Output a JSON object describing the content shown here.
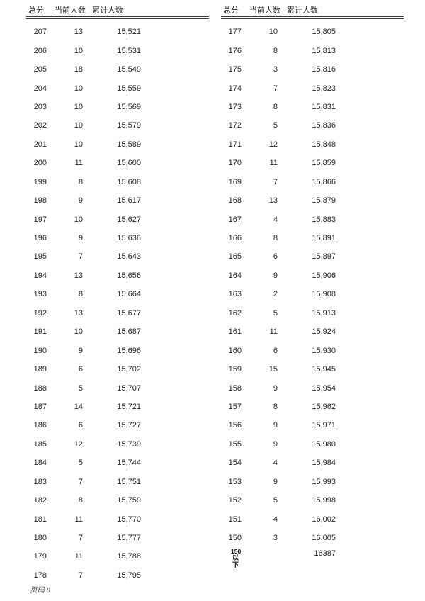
{
  "page": {
    "background": "#ffffff",
    "text_color": "#222222",
    "footer_label": "页码 8"
  },
  "tables": [
    {
      "side": "left",
      "headers": {
        "score": "总分",
        "current": "当前人数",
        "cumulative": "累计人数"
      },
      "rows": [
        {
          "score": "207",
          "current": "13",
          "cumulative": "15,521"
        },
        {
          "score": "206",
          "current": "10",
          "cumulative": "15,531"
        },
        {
          "score": "205",
          "current": "18",
          "cumulative": "15,549"
        },
        {
          "score": "204",
          "current": "10",
          "cumulative": "15,559"
        },
        {
          "score": "203",
          "current": "10",
          "cumulative": "15,569"
        },
        {
          "score": "202",
          "current": "10",
          "cumulative": "15,579"
        },
        {
          "score": "201",
          "current": "10",
          "cumulative": "15,589"
        },
        {
          "score": "200",
          "current": "11",
          "cumulative": "15,600"
        },
        {
          "score": "199",
          "current": "8",
          "cumulative": "15,608"
        },
        {
          "score": "198",
          "current": "9",
          "cumulative": "15,617"
        },
        {
          "score": "197",
          "current": "10",
          "cumulative": "15,627"
        },
        {
          "score": "196",
          "current": "9",
          "cumulative": "15,636"
        },
        {
          "score": "195",
          "current": "7",
          "cumulative": "15,643"
        },
        {
          "score": "194",
          "current": "13",
          "cumulative": "15,656"
        },
        {
          "score": "193",
          "current": "8",
          "cumulative": "15,664"
        },
        {
          "score": "192",
          "current": "13",
          "cumulative": "15,677"
        },
        {
          "score": "191",
          "current": "10",
          "cumulative": "15,687"
        },
        {
          "score": "190",
          "current": "9",
          "cumulative": "15,696"
        },
        {
          "score": "189",
          "current": "6",
          "cumulative": "15,702"
        },
        {
          "score": "188",
          "current": "5",
          "cumulative": "15,707"
        },
        {
          "score": "187",
          "current": "14",
          "cumulative": "15,721"
        },
        {
          "score": "186",
          "current": "6",
          "cumulative": "15,727"
        },
        {
          "score": "185",
          "current": "12",
          "cumulative": "15,739"
        },
        {
          "score": "184",
          "current": "5",
          "cumulative": "15,744"
        },
        {
          "score": "183",
          "current": "7",
          "cumulative": "15,751"
        },
        {
          "score": "182",
          "current": "8",
          "cumulative": "15,759"
        },
        {
          "score": "181",
          "current": "11",
          "cumulative": "15,770"
        },
        {
          "score": "180",
          "current": "7",
          "cumulative": "15,777"
        },
        {
          "score": "179",
          "current": "11",
          "cumulative": "15,788"
        },
        {
          "score": "178",
          "current": "7",
          "cumulative": "15,795"
        }
      ]
    },
    {
      "side": "right",
      "headers": {
        "score": "总分",
        "current": "当前人数",
        "cumulative": "累计人数"
      },
      "rows": [
        {
          "score": "177",
          "current": "10",
          "cumulative": "15,805"
        },
        {
          "score": "176",
          "current": "8",
          "cumulative": "15,813"
        },
        {
          "score": "175",
          "current": "3",
          "cumulative": "15,816"
        },
        {
          "score": "174",
          "current": "7",
          "cumulative": "15,823"
        },
        {
          "score": "173",
          "current": "8",
          "cumulative": "15,831"
        },
        {
          "score": "172",
          "current": "5",
          "cumulative": "15,836"
        },
        {
          "score": "171",
          "current": "12",
          "cumulative": "15,848"
        },
        {
          "score": "170",
          "current": "11",
          "cumulative": "15,859"
        },
        {
          "score": "169",
          "current": "7",
          "cumulative": "15,866"
        },
        {
          "score": "168",
          "current": "13",
          "cumulative": "15,879"
        },
        {
          "score": "167",
          "current": "4",
          "cumulative": "15,883"
        },
        {
          "score": "166",
          "current": "8",
          "cumulative": "15,891"
        },
        {
          "score": "165",
          "current": "6",
          "cumulative": "15,897"
        },
        {
          "score": "164",
          "current": "9",
          "cumulative": "15,906"
        },
        {
          "score": "163",
          "current": "2",
          "cumulative": "15,908"
        },
        {
          "score": "162",
          "current": "5",
          "cumulative": "15,913"
        },
        {
          "score": "161",
          "current": "11",
          "cumulative": "15,924"
        },
        {
          "score": "160",
          "current": "6",
          "cumulative": "15,930"
        },
        {
          "score": "159",
          "current": "15",
          "cumulative": "15,945"
        },
        {
          "score": "158",
          "current": "9",
          "cumulative": "15,954"
        },
        {
          "score": "157",
          "current": "8",
          "cumulative": "15,962"
        },
        {
          "score": "156",
          "current": "9",
          "cumulative": "15,971"
        },
        {
          "score": "155",
          "current": "9",
          "cumulative": "15,980"
        },
        {
          "score": "154",
          "current": "4",
          "cumulative": "15,984"
        },
        {
          "score": "153",
          "current": "9",
          "cumulative": "15,993"
        },
        {
          "score": "152",
          "current": "5",
          "cumulative": "15,998"
        },
        {
          "score": "151",
          "current": "4",
          "cumulative": "16,002"
        },
        {
          "score": "150",
          "current": "3",
          "cumulative": "16,005"
        }
      ],
      "summary_row": {
        "score_label": "150以下",
        "score_label_lines": [
          "150",
          "以",
          "下"
        ],
        "current": "",
        "cumulative": "16387"
      }
    }
  ]
}
